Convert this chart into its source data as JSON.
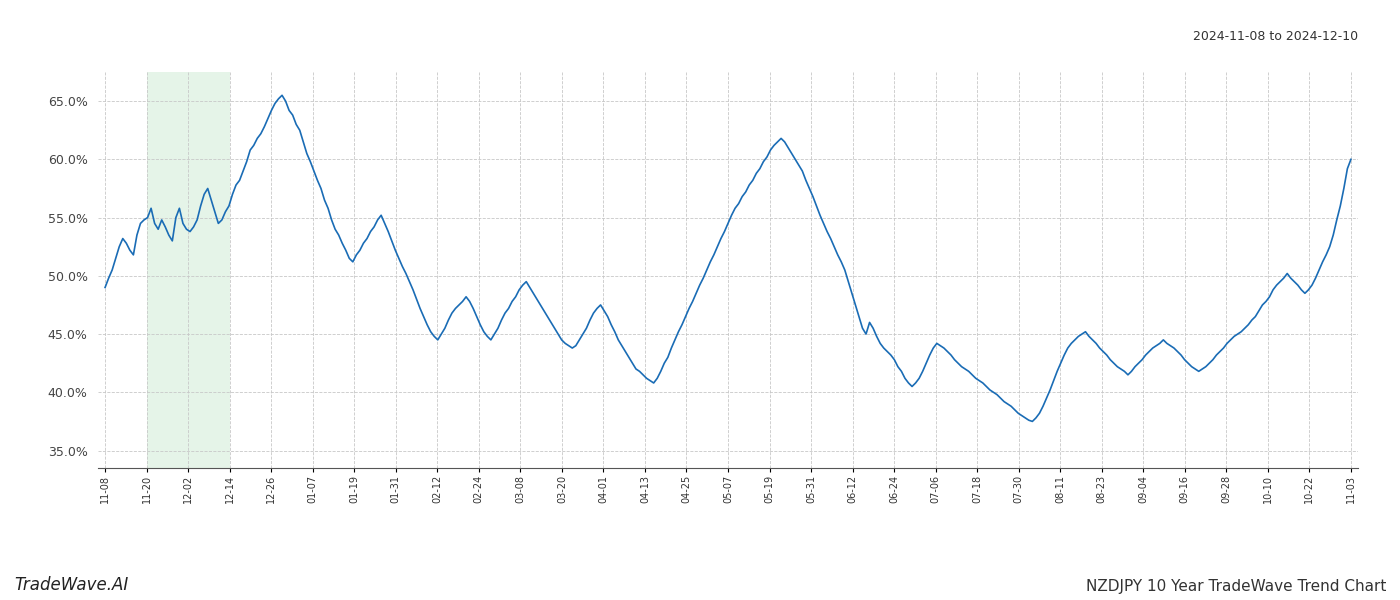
{
  "title_top_right": "2024-11-08 to 2024-12-10",
  "title_bottom_left": "TradeWave.AI",
  "title_bottom_right": "NZDJPY 10 Year TradeWave Trend Chart",
  "line_color": "#1a6cb5",
  "line_width": 1.2,
  "background_color": "#ffffff",
  "grid_color": "#c8c8c8",
  "grid_style": "--",
  "shade_color": "#d4edda",
  "shade_alpha": 0.6,
  "ylim": [
    0.335,
    0.675
  ],
  "yticks": [
    0.35,
    0.4,
    0.45,
    0.5,
    0.55,
    0.6,
    0.65
  ],
  "shade_start_label": "11-20",
  "shade_end_label": "12-12",
  "x_tick_labels": [
    "11-08",
    "11-20",
    "12-02",
    "12-14",
    "12-26",
    "01-07",
    "01-19",
    "01-31",
    "02-12",
    "02-24",
    "03-08",
    "03-20",
    "04-01",
    "04-13",
    "04-25",
    "05-07",
    "05-19",
    "05-31",
    "06-12",
    "06-24",
    "07-06",
    "07-18",
    "07-30",
    "08-11",
    "08-23",
    "09-04",
    "09-16",
    "09-28",
    "10-10",
    "10-22",
    "11-03"
  ],
  "values": [
    0.49,
    0.498,
    0.505,
    0.515,
    0.525,
    0.532,
    0.528,
    0.522,
    0.518,
    0.535,
    0.545,
    0.548,
    0.55,
    0.558,
    0.545,
    0.54,
    0.548,
    0.542,
    0.535,
    0.53,
    0.55,
    0.558,
    0.545,
    0.54,
    0.538,
    0.542,
    0.548,
    0.56,
    0.57,
    0.575,
    0.565,
    0.555,
    0.545,
    0.548,
    0.555,
    0.56,
    0.57,
    0.578,
    0.582,
    0.59,
    0.598,
    0.608,
    0.612,
    0.618,
    0.622,
    0.628,
    0.635,
    0.642,
    0.648,
    0.652,
    0.655,
    0.65,
    0.642,
    0.638,
    0.63,
    0.625,
    0.615,
    0.605,
    0.598,
    0.59,
    0.582,
    0.575,
    0.565,
    0.558,
    0.548,
    0.54,
    0.535,
    0.528,
    0.522,
    0.515,
    0.512,
    0.518,
    0.522,
    0.528,
    0.532,
    0.538,
    0.542,
    0.548,
    0.552,
    0.545,
    0.538,
    0.53,
    0.522,
    0.515,
    0.508,
    0.502,
    0.495,
    0.488,
    0.48,
    0.472,
    0.465,
    0.458,
    0.452,
    0.448,
    0.445,
    0.45,
    0.455,
    0.462,
    0.468,
    0.472,
    0.475,
    0.478,
    0.482,
    0.478,
    0.472,
    0.465,
    0.458,
    0.452,
    0.448,
    0.445,
    0.45,
    0.455,
    0.462,
    0.468,
    0.472,
    0.478,
    0.482,
    0.488,
    0.492,
    0.495,
    0.49,
    0.485,
    0.48,
    0.475,
    0.47,
    0.465,
    0.46,
    0.455,
    0.45,
    0.445,
    0.442,
    0.44,
    0.438,
    0.44,
    0.445,
    0.45,
    0.455,
    0.462,
    0.468,
    0.472,
    0.475,
    0.47,
    0.465,
    0.458,
    0.452,
    0.445,
    0.44,
    0.435,
    0.43,
    0.425,
    0.42,
    0.418,
    0.415,
    0.412,
    0.41,
    0.408,
    0.412,
    0.418,
    0.425,
    0.43,
    0.438,
    0.445,
    0.452,
    0.458,
    0.465,
    0.472,
    0.478,
    0.485,
    0.492,
    0.498,
    0.505,
    0.512,
    0.518,
    0.525,
    0.532,
    0.538,
    0.545,
    0.552,
    0.558,
    0.562,
    0.568,
    0.572,
    0.578,
    0.582,
    0.588,
    0.592,
    0.598,
    0.602,
    0.608,
    0.612,
    0.615,
    0.618,
    0.615,
    0.61,
    0.605,
    0.6,
    0.595,
    0.59,
    0.582,
    0.575,
    0.568,
    0.56,
    0.552,
    0.545,
    0.538,
    0.532,
    0.525,
    0.518,
    0.512,
    0.505,
    0.495,
    0.485,
    0.475,
    0.465,
    0.455,
    0.45,
    0.46,
    0.455,
    0.448,
    0.442,
    0.438,
    0.435,
    0.432,
    0.428,
    0.422,
    0.418,
    0.412,
    0.408,
    0.405,
    0.408,
    0.412,
    0.418,
    0.425,
    0.432,
    0.438,
    0.442,
    0.44,
    0.438,
    0.435,
    0.432,
    0.428,
    0.425,
    0.422,
    0.42,
    0.418,
    0.415,
    0.412,
    0.41,
    0.408,
    0.405,
    0.402,
    0.4,
    0.398,
    0.395,
    0.392,
    0.39,
    0.388,
    0.385,
    0.382,
    0.38,
    0.378,
    0.376,
    0.375,
    0.378,
    0.382,
    0.388,
    0.395,
    0.402,
    0.41,
    0.418,
    0.425,
    0.432,
    0.438,
    0.442,
    0.445,
    0.448,
    0.45,
    0.452,
    0.448,
    0.445,
    0.442,
    0.438,
    0.435,
    0.432,
    0.428,
    0.425,
    0.422,
    0.42,
    0.418,
    0.415,
    0.418,
    0.422,
    0.425,
    0.428,
    0.432,
    0.435,
    0.438,
    0.44,
    0.442,
    0.445,
    0.442,
    0.44,
    0.438,
    0.435,
    0.432,
    0.428,
    0.425,
    0.422,
    0.42,
    0.418,
    0.42,
    0.422,
    0.425,
    0.428,
    0.432,
    0.435,
    0.438,
    0.442,
    0.445,
    0.448,
    0.45,
    0.452,
    0.455,
    0.458,
    0.462,
    0.465,
    0.47,
    0.475,
    0.478,
    0.482,
    0.488,
    0.492,
    0.495,
    0.498,
    0.502,
    0.498,
    0.495,
    0.492,
    0.488,
    0.485,
    0.488,
    0.492,
    0.498,
    0.505,
    0.512,
    0.518,
    0.525,
    0.535,
    0.548,
    0.56,
    0.575,
    0.592,
    0.6
  ]
}
